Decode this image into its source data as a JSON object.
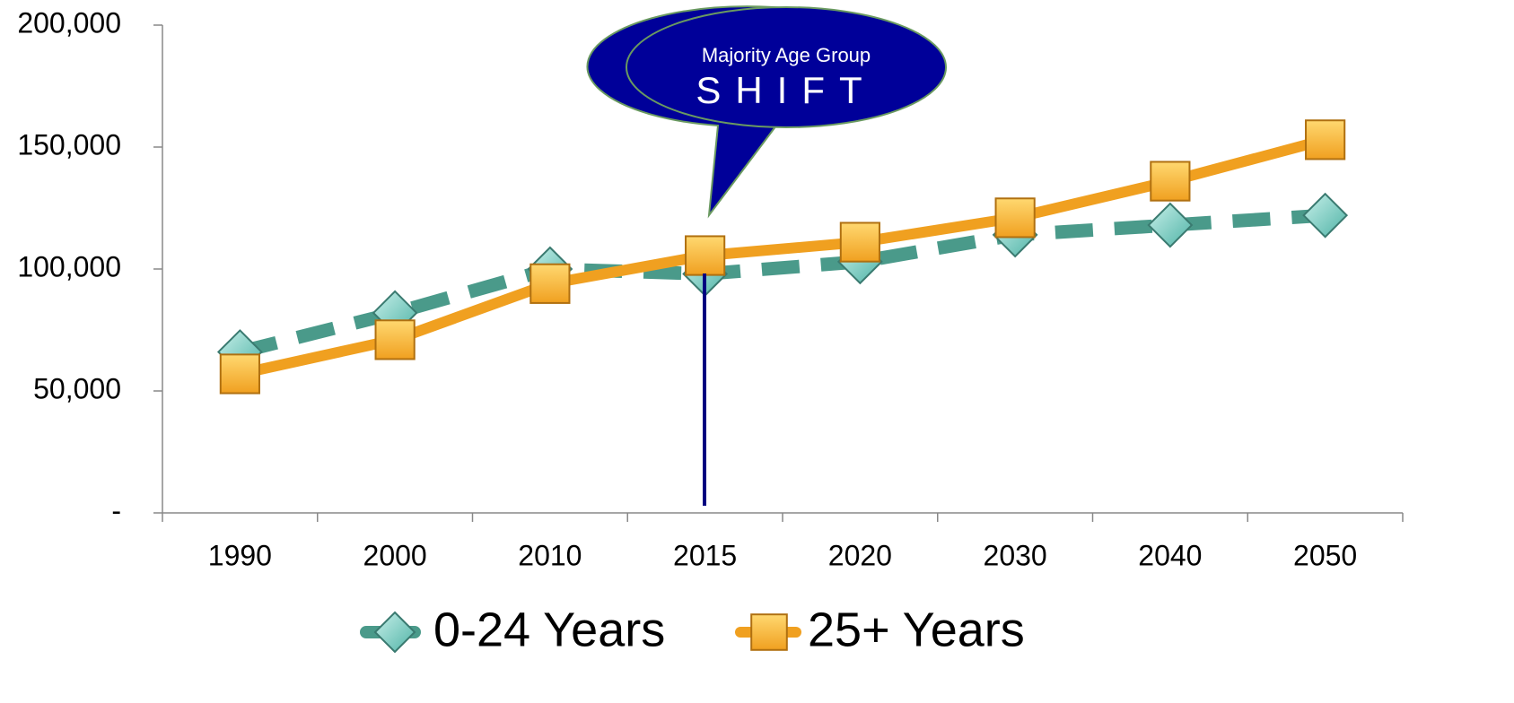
{
  "chart_data": {
    "type": "line",
    "categories": [
      "1990",
      "2000",
      "2010",
      "2015",
      "2020",
      "2030",
      "2040",
      "2050"
    ],
    "series": [
      {
        "name": "0-24 Years",
        "color": "#4a9a8a",
        "values": [
          66000,
          82000,
          100000,
          98000,
          103000,
          114000,
          118000,
          122000
        ]
      },
      {
        "name": "25+ Years",
        "color": "#f0a020",
        "values": [
          57000,
          71000,
          94000,
          105500,
          111000,
          121000,
          136000,
          153000
        ]
      }
    ],
    "ylim": [
      0,
      200000
    ],
    "yticks": [
      {
        "value": 0,
        "label": "-"
      },
      {
        "value": 50000,
        "label": "50,000"
      },
      {
        "value": 100000,
        "label": "100,000"
      },
      {
        "value": 150000,
        "label": "150,000"
      },
      {
        "value": 200000,
        "label": "200,000"
      }
    ],
    "legend": "bottom",
    "annotation": [
      "Majority Age Group",
      "SHIFT"
    ]
  }
}
